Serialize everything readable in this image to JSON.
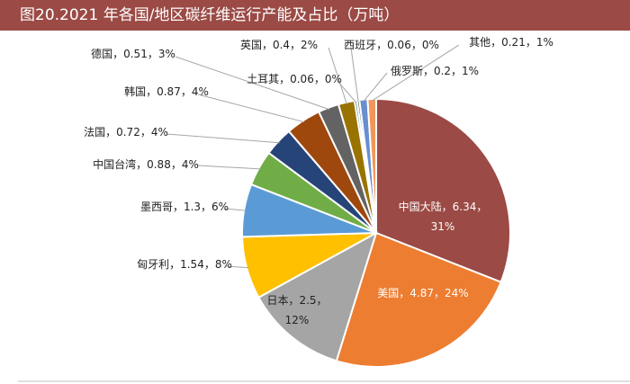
{
  "header": {
    "title": "图20.2021 年各国/地区碳纤维运行产能及占比（万吨）"
  },
  "chart_data": {
    "type": "pie",
    "title": "图20.2021 年各国/地区碳纤维运行产能及占比（万吨）",
    "slices": [
      {
        "name": "中国大陆",
        "value": 6.34,
        "percent": "31%",
        "color": "#9b4a45"
      },
      {
        "name": "美国",
        "value": 4.87,
        "percent": "24%",
        "color": "#ed7d31"
      },
      {
        "name": "日本",
        "value": 2.5,
        "percent": "12%",
        "color": "#a5a5a5"
      },
      {
        "name": "匈牙利",
        "value": 1.54,
        "percent": "8%",
        "color": "#ffc000"
      },
      {
        "name": "墨西哥",
        "value": 1.3,
        "percent": "6%",
        "color": "#5b9bd5"
      },
      {
        "name": "中国台湾",
        "value": 0.88,
        "percent": "4%",
        "color": "#70ad47"
      },
      {
        "name": "法国",
        "value": 0.72,
        "percent": "4%",
        "color": "#264478"
      },
      {
        "name": "韩国",
        "value": 0.87,
        "percent": "4%",
        "color": "#9e480e"
      },
      {
        "name": "德国",
        "value": 0.51,
        "percent": "3%",
        "color": "#636363"
      },
      {
        "name": "英国",
        "value": 0.4,
        "percent": "2%",
        "color": "#997300"
      },
      {
        "name": "土耳其",
        "value": 0.06,
        "percent": "0%",
        "color": "#255e91"
      },
      {
        "name": "西班牙",
        "value": 0.06,
        "percent": "0%",
        "color": "#43682b"
      },
      {
        "name": "俄罗斯",
        "value": 0.2,
        "percent": "1%",
        "color": "#698ed0"
      },
      {
        "name": "其他",
        "value": 0.21,
        "percent": "1%",
        "color": "#f1975a"
      }
    ]
  }
}
